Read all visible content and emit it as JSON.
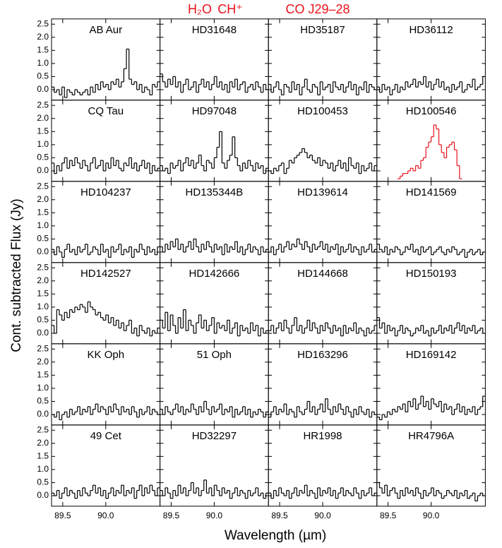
{
  "chart_data": {
    "type": "step",
    "xlabel": "Wavelength (µm)",
    "ylabel": "Cont. subtracted Flux (Jy)",
    "annotations": [
      "H₂O",
      "CH⁺",
      "CO J29–28"
    ],
    "annotation_color": "#e8121b",
    "columns": 4,
    "xlim": [
      89.37,
      90.63
    ],
    "ylim": [
      -0.4,
      2.7
    ],
    "xticks": [
      89.5,
      {
        "value": 90,
        "label": "90.0"
      }
    ],
    "yticks": [
      {
        "value": 0,
        "label": "0.0"
      },
      0.5,
      {
        "value": 1,
        "label": "1.0"
      },
      1.5,
      {
        "value": 2,
        "label": "2.0"
      },
      2.5
    ],
    "x": [
      89.385,
      89.415,
      89.445,
      89.475,
      89.505,
      89.535,
      89.565,
      89.595,
      89.625,
      89.655,
      89.685,
      89.715,
      89.745,
      89.775,
      89.805,
      89.835,
      89.865,
      89.895,
      89.925,
      89.955,
      89.985,
      90.015,
      90.045,
      90.075,
      90.105,
      90.135,
      90.165,
      90.195,
      90.225,
      90.255,
      90.285,
      90.315,
      90.345,
      90.375,
      90.405,
      90.435,
      90.465,
      90.495,
      90.525,
      90.555,
      90.585,
      90.615
    ],
    "series": [
      {
        "name": "AB Aur",
        "color": "#000000",
        "values": [
          0.1,
          -0.1,
          0.0,
          -0.2,
          0.1,
          -0.3,
          0.0,
          -0.1,
          -0.2,
          0.0,
          -0.1,
          -0.2,
          -0.1,
          0.0,
          -0.2,
          0.1,
          -0.1,
          0.2,
          0.0,
          0.3,
          0.1,
          0.2,
          0.0,
          0.3,
          0.2,
          0.4,
          0.1,
          0.3,
          0.8,
          1.55,
          0.4,
          0.2,
          0.3,
          0.0,
          0.2,
          -0.1,
          0.1,
          0.0,
          -0.2,
          0.2,
          0.1,
          0.3
        ]
      },
      {
        "name": "HD31648",
        "color": "#000000",
        "values": [
          0.6,
          0.3,
          0.1,
          0.4,
          0.2,
          0.5,
          0.1,
          0.3,
          -0.1,
          0.2,
          0.4,
          0.0,
          0.1,
          0.3,
          -0.1,
          0.2,
          0.4,
          0.1,
          0.3,
          0.0,
          0.2,
          0.5,
          0.1,
          0.3,
          0.0,
          0.2,
          -0.1,
          0.3,
          0.1,
          0.4,
          0.0,
          0.2,
          0.3,
          -0.1,
          0.1,
          0.2,
          0.0,
          0.3,
          0.1,
          -0.1,
          0.2,
          0.0
        ]
      },
      {
        "name": "HD35187",
        "color": "#000000",
        "values": [
          0.2,
          -0.1,
          0.1,
          0.3,
          0.0,
          -0.2,
          0.2,
          0.1,
          -0.1,
          0.3,
          0.0,
          0.2,
          -0.2,
          0.1,
          0.4,
          0.0,
          -0.1,
          0.2,
          0.1,
          -0.2,
          0.3,
          0.0,
          0.1,
          0.2,
          -0.1,
          0.3,
          0.1,
          0.0,
          0.2,
          -0.1,
          0.1,
          0.3,
          0.0,
          0.2,
          -0.2,
          0.1,
          0.0,
          0.3,
          -0.1,
          0.2,
          0.1,
          0.0
        ]
      },
      {
        "name": "HD36112",
        "color": "#000000",
        "values": [
          0.1,
          -0.1,
          0.2,
          0.0,
          0.1,
          -0.2,
          0.0,
          0.2,
          -0.1,
          0.1,
          0.0,
          0.3,
          0.1,
          0.2,
          0.4,
          0.1,
          0.3,
          0.2,
          0.5,
          0.1,
          0.3,
          0.0,
          0.2,
          0.4,
          0.1,
          0.3,
          0.0,
          0.1,
          -0.1,
          0.2,
          0.0,
          0.1,
          0.3,
          -0.1,
          0.0,
          0.2,
          0.1,
          0.4,
          0.0,
          0.1,
          0.2,
          0.5
        ]
      },
      {
        "name": "CQ Tau",
        "color": "#000000",
        "values": [
          0.3,
          -0.1,
          0.2,
          0.0,
          0.3,
          0.5,
          0.1,
          0.4,
          0.2,
          0.5,
          0.3,
          0.1,
          0.4,
          0.2,
          0.0,
          0.3,
          0.5,
          0.1,
          0.2,
          0.4,
          0.0,
          0.3,
          0.1,
          0.5,
          0.2,
          0.4,
          0.1,
          0.0,
          0.3,
          0.2,
          0.5,
          0.1,
          0.3,
          0.0,
          0.2,
          0.4,
          0.1,
          0.3,
          -0.1,
          0.2,
          0.0,
          0.1
        ]
      },
      {
        "name": "HD97048",
        "color": "#000000",
        "values": [
          0.2,
          0.0,
          0.1,
          -0.1,
          0.3,
          0.1,
          0.2,
          0.4,
          0.0,
          0.3,
          0.5,
          0.2,
          0.4,
          0.1,
          0.3,
          0.6,
          0.2,
          0.0,
          0.4,
          0.3,
          0.1,
          0.5,
          0.9,
          1.5,
          0.3,
          0.1,
          0.4,
          0.6,
          1.3,
          0.5,
          0.2,
          0.0,
          0.3,
          0.1,
          0.4,
          0.2,
          0.0,
          0.3,
          0.1,
          0.2,
          -0.1,
          0.1
        ]
      },
      {
        "name": "HD100453",
        "color": "#000000",
        "values": [
          0.0,
          -0.1,
          0.1,
          0.0,
          0.2,
          0.3,
          -0.1,
          0.1,
          0.4,
          0.3,
          0.5,
          0.6,
          0.7,
          0.85,
          0.7,
          0.5,
          0.6,
          0.4,
          0.3,
          0.5,
          0.2,
          0.4,
          0.3,
          0.1,
          0.3,
          0.0,
          0.2,
          0.4,
          0.1,
          0.3,
          0.0,
          0.5,
          0.2,
          0.1,
          0.3,
          -0.1,
          0.2,
          0.0,
          0.1,
          0.3,
          0.0,
          0.2
        ]
      },
      {
        "name": "HD100546",
        "color": "#e8121b",
        "values": [
          null,
          null,
          null,
          null,
          null,
          null,
          null,
          null,
          -0.3,
          -0.2,
          -0.1,
          -0.1,
          0.0,
          0.1,
          0.0,
          0.2,
          0.1,
          0.4,
          0.5,
          0.9,
          1.1,
          1.3,
          1.75,
          1.6,
          1.0,
          0.7,
          0.5,
          0.9,
          1.0,
          1.1,
          0.8,
          0.2,
          -0.3,
          null,
          null,
          null,
          null,
          null,
          null,
          null,
          null,
          null
        ]
      },
      {
        "name": "HD104237",
        "color": "#000000",
        "values": [
          0.1,
          -0.1,
          0.2,
          0.0,
          -0.2,
          0.1,
          0.3,
          0.0,
          0.1,
          -0.1,
          0.2,
          0.0,
          0.1,
          0.3,
          -0.1,
          0.0,
          0.2,
          0.1,
          -0.1,
          0.3,
          0.0,
          0.1,
          -0.2,
          0.2,
          0.0,
          0.1,
          0.3,
          -0.1,
          0.1,
          0.0,
          0.2,
          -0.2,
          0.1,
          0.0,
          0.3,
          0.1,
          -0.1,
          0.2,
          0.0,
          0.1,
          -0.1,
          0.2
        ]
      },
      {
        "name": "HD135344B",
        "color": "#000000",
        "values": [
          0.2,
          0.0,
          0.3,
          0.1,
          0.4,
          0.2,
          0.5,
          0.1,
          0.3,
          0.0,
          0.2,
          0.4,
          0.1,
          0.5,
          0.2,
          0.0,
          0.3,
          0.1,
          0.4,
          0.2,
          0.0,
          0.3,
          0.1,
          0.2,
          -0.1,
          0.3,
          0.0,
          0.2,
          0.1,
          0.4,
          0.0,
          0.2,
          -0.1,
          0.1,
          0.3,
          0.0,
          0.2,
          0.1,
          -0.1,
          0.2,
          0.0,
          0.1
        ]
      },
      {
        "name": "HD139614",
        "color": "#000000",
        "values": [
          0.0,
          0.2,
          -0.1,
          0.1,
          0.3,
          0.0,
          0.2,
          0.4,
          0.1,
          0.3,
          0.2,
          0.5,
          0.3,
          0.1,
          0.4,
          0.2,
          0.0,
          0.3,
          0.1,
          0.2,
          0.4,
          0.1,
          0.3,
          0.0,
          0.2,
          0.1,
          0.3,
          -0.1,
          0.2,
          0.0,
          0.1,
          0.3,
          0.0,
          0.2,
          0.1,
          -0.1,
          0.2,
          0.0,
          0.1,
          0.3,
          0.0,
          0.1
        ]
      },
      {
        "name": "HD141569",
        "color": "#000000",
        "values": [
          0.3,
          0.1,
          0.0,
          0.2,
          -0.1,
          0.1,
          0.0,
          0.2,
          0.1,
          -0.1,
          0.0,
          0.2,
          0.1,
          0.3,
          0.0,
          0.1,
          -0.1,
          0.2,
          0.0,
          0.1,
          0.2,
          -0.1,
          0.0,
          0.1,
          0.2,
          0.0,
          -0.1,
          0.1,
          0.0,
          0.2,
          0.1,
          -0.1,
          0.0,
          0.1,
          -0.2,
          0.0,
          0.1,
          -0.1,
          0.0,
          0.1,
          -0.1,
          0.0
        ]
      },
      {
        "name": "HD142527",
        "color": "#000000",
        "values": [
          0.3,
          0.0,
          0.9,
          0.7,
          0.5,
          0.8,
          0.6,
          0.9,
          0.8,
          1.0,
          0.9,
          1.1,
          1.0,
          0.8,
          1.2,
          1.0,
          0.9,
          0.7,
          0.8,
          0.6,
          0.5,
          0.7,
          0.4,
          0.6,
          0.3,
          0.5,
          0.2,
          0.4,
          0.1,
          0.3,
          0.5,
          0.0,
          0.2,
          -0.1,
          0.3,
          0.1,
          0.0,
          0.2,
          -0.1,
          0.1,
          0.0,
          0.2
        ]
      },
      {
        "name": "HD142666",
        "color": "#000000",
        "values": [
          0.5,
          0.2,
          0.8,
          0.1,
          0.7,
          0.3,
          0.0,
          0.6,
          0.2,
          0.9,
          0.1,
          0.5,
          0.3,
          0.0,
          0.4,
          0.7,
          0.2,
          0.5,
          0.1,
          0.3,
          0.6,
          0.0,
          0.4,
          0.2,
          0.3,
          0.1,
          0.5,
          0.0,
          0.2,
          0.4,
          -0.1,
          0.3,
          0.1,
          0.2,
          0.0,
          0.4,
          0.1,
          0.3,
          -0.1,
          0.2,
          0.0,
          0.1
        ]
      },
      {
        "name": "HD144668",
        "color": "#000000",
        "values": [
          0.1,
          0.3,
          0.0,
          0.2,
          0.4,
          0.1,
          0.5,
          0.2,
          0.0,
          0.3,
          0.6,
          0.1,
          0.3,
          0.0,
          0.2,
          0.5,
          0.1,
          0.4,
          0.2,
          0.0,
          0.3,
          0.1,
          0.4,
          0.2,
          0.0,
          0.3,
          0.1,
          0.2,
          -0.1,
          0.3,
          0.0,
          0.2,
          0.1,
          0.4,
          0.0,
          0.2,
          0.1,
          -0.1,
          0.2,
          0.0,
          0.1,
          0.3
        ]
      },
      {
        "name": "HD150193",
        "color": "#000000",
        "values": [
          0.6,
          0.2,
          0.4,
          0.0,
          0.3,
          0.1,
          0.2,
          -0.1,
          0.1,
          0.3,
          0.0,
          0.2,
          0.1,
          -0.1,
          0.0,
          0.2,
          0.1,
          0.3,
          0.0,
          0.1,
          -0.1,
          0.2,
          0.0,
          0.1,
          0.3,
          0.0,
          0.2,
          0.1,
          0.3,
          0.0,
          0.2,
          0.4,
          0.1,
          0.3,
          0.0,
          0.2,
          0.1,
          0.3,
          0.0,
          0.1,
          0.2,
          0.0
        ]
      },
      {
        "name": "KK Oph",
        "color": "#000000",
        "values": [
          0.0,
          -0.1,
          0.1,
          -0.2,
          0.0,
          0.1,
          -0.1,
          0.2,
          0.0,
          0.1,
          0.3,
          0.0,
          0.2,
          0.1,
          0.3,
          0.0,
          0.2,
          0.4,
          0.1,
          0.3,
          0.2,
          0.0,
          0.3,
          0.1,
          0.4,
          0.2,
          0.0,
          0.3,
          0.1,
          0.2,
          0.0,
          0.3,
          0.1,
          -0.1,
          0.2,
          0.0,
          0.1,
          0.3,
          0.0,
          0.2,
          0.1,
          0.0
        ]
      },
      {
        "name": "51 Oph",
        "color": "#000000",
        "values": [
          0.2,
          0.0,
          0.3,
          0.1,
          0.0,
          0.2,
          0.4,
          0.1,
          0.3,
          0.0,
          0.2,
          0.1,
          0.4,
          0.2,
          0.0,
          0.3,
          0.1,
          0.5,
          0.2,
          0.0,
          0.3,
          0.1,
          0.2,
          0.4,
          0.0,
          0.2,
          0.1,
          0.3,
          -0.1,
          0.2,
          0.0,
          0.1,
          0.3,
          0.0,
          0.2,
          -0.1,
          0.1,
          0.0,
          0.2,
          0.1,
          -0.1,
          0.1
        ]
      },
      {
        "name": "HD163296",
        "color": "#000000",
        "values": [
          -0.1,
          0.1,
          0.3,
          0.0,
          0.2,
          0.1,
          0.4,
          0.0,
          0.2,
          0.1,
          -0.1,
          0.3,
          0.1,
          0.0,
          0.2,
          0.5,
          0.1,
          0.3,
          0.0,
          0.2,
          0.4,
          0.1,
          0.6,
          0.2,
          0.0,
          0.3,
          0.1,
          0.4,
          0.2,
          0.0,
          0.3,
          0.1,
          -0.1,
          0.2,
          0.0,
          0.3,
          0.1,
          0.0,
          0.2,
          -0.1,
          0.1,
          0.0
        ]
      },
      {
        "name": "HD169142",
        "color": "#000000",
        "values": [
          -0.1,
          -0.2,
          0.0,
          -0.1,
          0.1,
          0.0,
          0.2,
          0.1,
          0.3,
          0.2,
          0.4,
          0.1,
          0.5,
          0.3,
          0.6,
          0.2,
          0.4,
          0.7,
          0.3,
          0.5,
          0.2,
          0.6,
          0.4,
          0.3,
          0.5,
          0.1,
          0.4,
          0.2,
          0.3,
          0.0,
          0.2,
          0.4,
          0.1,
          0.3,
          0.0,
          0.2,
          0.1,
          0.3,
          0.0,
          0.2,
          0.3,
          0.7
        ]
      },
      {
        "name": "49 Cet",
        "color": "#000000",
        "values": [
          0.1,
          0.0,
          0.2,
          -0.1,
          0.1,
          0.3,
          0.0,
          0.2,
          0.1,
          -0.1,
          0.2,
          0.0,
          0.3,
          0.1,
          0.0,
          0.2,
          0.4,
          0.1,
          0.3,
          0.0,
          0.2,
          -0.1,
          0.1,
          0.3,
          0.0,
          0.2,
          0.1,
          0.4,
          0.0,
          0.2,
          0.1,
          0.3,
          -0.1,
          0.2,
          0.4,
          0.0,
          0.3,
          0.1,
          0.4,
          0.2,
          0.0,
          0.3
        ]
      },
      {
        "name": "HD32297",
        "color": "#000000",
        "values": [
          0.2,
          0.0,
          0.3,
          0.1,
          -0.1,
          0.2,
          0.0,
          0.4,
          0.1,
          0.3,
          0.0,
          0.2,
          0.5,
          0.1,
          0.3,
          0.0,
          0.2,
          0.6,
          0.1,
          0.3,
          0.0,
          0.4,
          0.2,
          0.0,
          0.3,
          0.1,
          0.2,
          -0.1,
          0.1,
          0.3,
          0.0,
          0.2,
          0.1,
          -0.1,
          0.2,
          0.0,
          0.1,
          0.3,
          0.0,
          0.1,
          -0.1,
          0.1
        ]
      },
      {
        "name": "HR1998",
        "color": "#000000",
        "values": [
          0.1,
          -0.1,
          0.2,
          0.0,
          0.3,
          0.1,
          0.0,
          0.2,
          -0.1,
          0.1,
          0.3,
          0.0,
          0.2,
          0.1,
          0.4,
          0.0,
          0.2,
          0.1,
          -0.1,
          0.3,
          0.0,
          0.2,
          0.1,
          0.3,
          0.0,
          0.2,
          -0.1,
          0.1,
          0.3,
          0.0,
          0.2,
          0.1,
          0.0,
          0.3,
          0.1,
          -0.1,
          0.2,
          0.0,
          0.1,
          0.3,
          0.0,
          0.1
        ]
      },
      {
        "name": "HR4796A",
        "color": "#000000",
        "values": [
          0.5,
          0.3,
          0.1,
          0.4,
          0.0,
          0.2,
          0.3,
          0.1,
          -0.1,
          0.2,
          0.0,
          0.3,
          0.1,
          0.2,
          0.0,
          0.3,
          0.1,
          -0.1,
          0.2,
          0.0,
          0.1,
          0.3,
          0.0,
          0.2,
          0.1,
          -0.1,
          0.0,
          0.2,
          0.1,
          0.0,
          0.2,
          -0.1,
          0.1,
          0.0,
          0.2,
          -0.1,
          0.0,
          0.1,
          -0.2,
          0.0,
          0.1,
          0.0
        ]
      }
    ]
  }
}
